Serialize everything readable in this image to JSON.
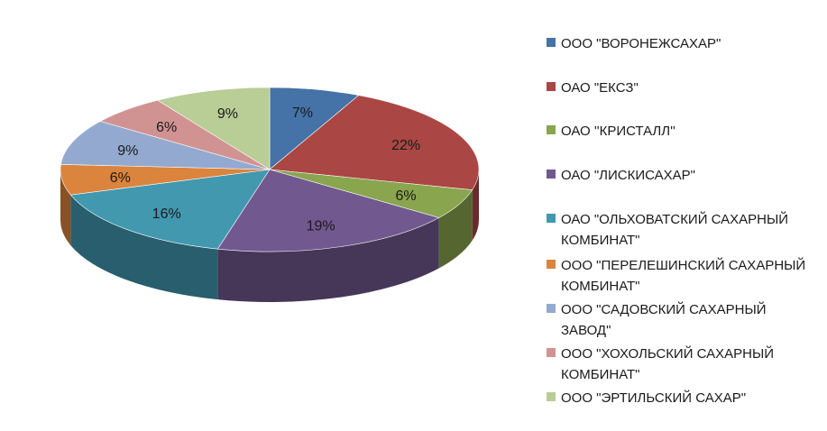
{
  "chart_data": {
    "type": "pie",
    "style": "3d",
    "title": "",
    "legend_position": "right",
    "slices": [
      {
        "name": "ООО \"Воронежсахар\"",
        "value": 7,
        "label": "7%",
        "color": "#4572a7"
      },
      {
        "name": "ОАО \"ЕКСЗ\"",
        "value": 22,
        "label": "22%",
        "color": "#aa4643"
      },
      {
        "name": "ОАО ''Кристалл''",
        "value": 6,
        "label": "6%",
        "color": "#89a54e"
      },
      {
        "name": "ОАО \"Лискисахар\"",
        "value": 19,
        "label": "19%",
        "color": "#71588f"
      },
      {
        "name": "ОАО \"Ольховатский сахарный комбинат\"",
        "value": 16,
        "label": "16%",
        "color": "#4198af"
      },
      {
        "name": "ООО \"Перелешинский сахарный комбинат\"",
        "value": 6,
        "label": "6%",
        "color": "#db843d"
      },
      {
        "name": "ООО \"Садовский сахарный завод\"",
        "value": 9,
        "label": "9%",
        "color": "#93a9cf"
      },
      {
        "name": "ООО \"Хохольский сахарный комбинат\"",
        "value": 6,
        "label": "6%",
        "color": "#d19392"
      },
      {
        "name": "ООО \"Эртильский сахар\"",
        "value": 9,
        "label": "9%",
        "color": "#b9cd96"
      }
    ]
  }
}
